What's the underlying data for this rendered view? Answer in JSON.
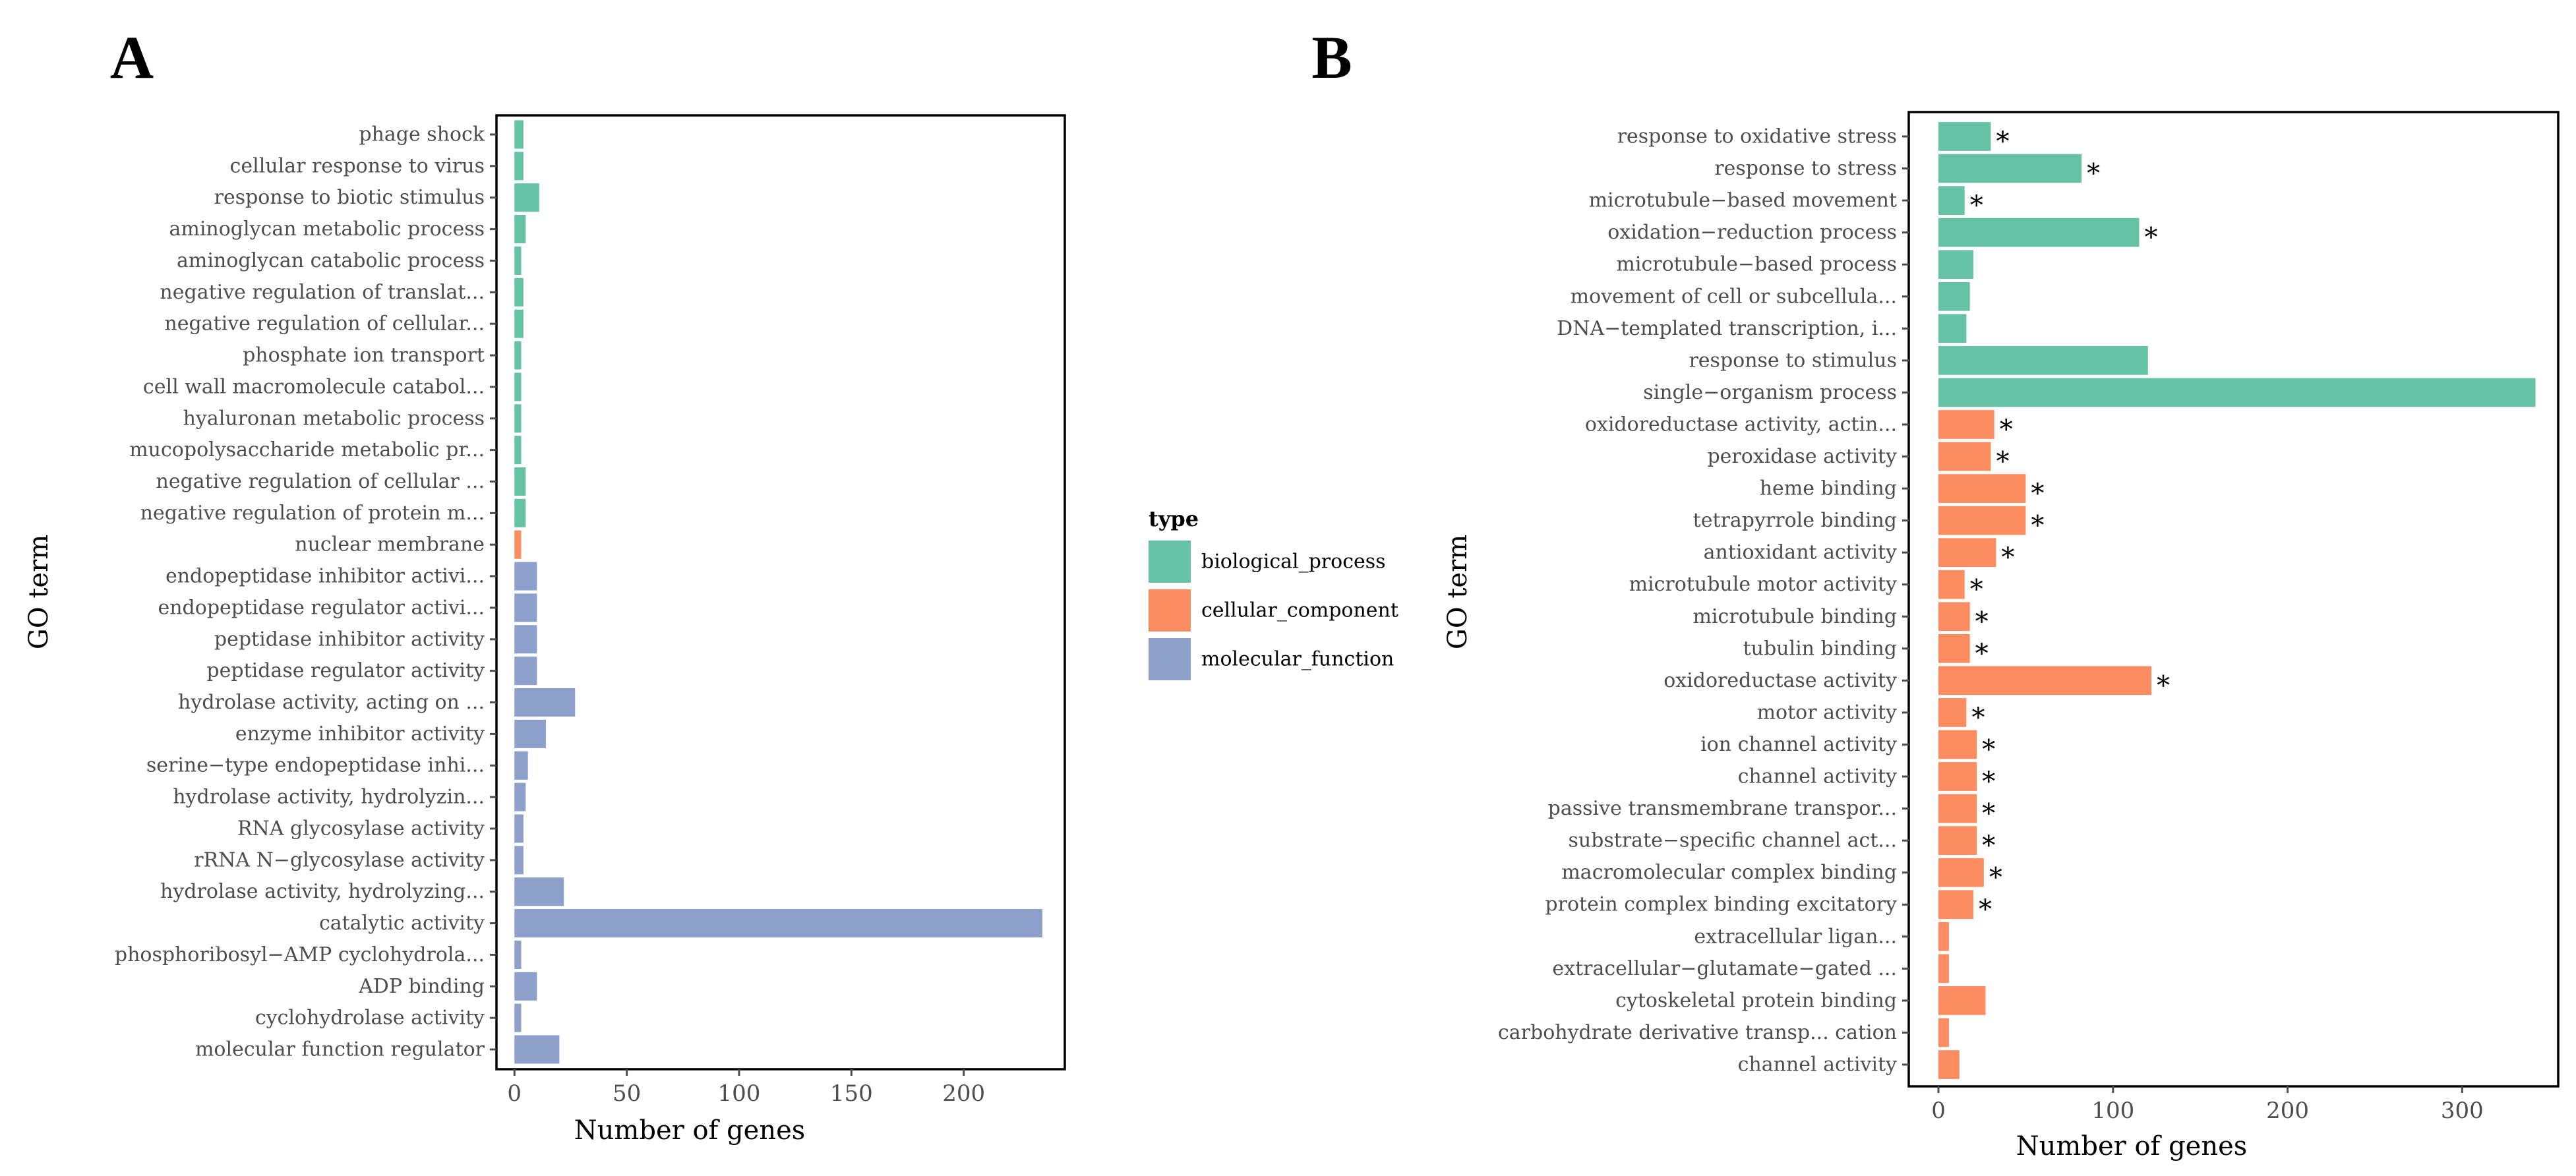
{
  "colors": {
    "biological_process": "#66C2A5",
    "cellular_component": "#FC8D62",
    "molecular_function": "#8DA0CB",
    "axis": "#000000",
    "tick_label": "#4D4D4D"
  },
  "legend": {
    "title": "type",
    "items": [
      {
        "key": "biological_process",
        "label": "biological_process"
      },
      {
        "key": "cellular_component",
        "label": "cellular_component"
      },
      {
        "key": "molecular_function",
        "label": "molecular_function"
      }
    ]
  },
  "chart_data": [
    {
      "panel": "A",
      "type": "bar",
      "orientation": "horizontal",
      "xlabel": "Number of genes",
      "ylabel": "GO term",
      "xlim": [
        -8,
        245
      ],
      "xticks": [
        0,
        50,
        100,
        150,
        200
      ],
      "legend_position": "right",
      "bars": [
        {
          "term": "phage shock",
          "value": 4,
          "type": "biological_process",
          "star": false
        },
        {
          "term": "cellular response to virus",
          "value": 4,
          "type": "biological_process",
          "star": false
        },
        {
          "term": "response to biotic stimulus",
          "value": 11,
          "type": "biological_process",
          "star": false
        },
        {
          "term": "aminoglycan metabolic process",
          "value": 5,
          "type": "biological_process",
          "star": false
        },
        {
          "term": "aminoglycan catabolic process",
          "value": 3,
          "type": "biological_process",
          "star": false
        },
        {
          "term": "negative regulation of translat...",
          "value": 4,
          "type": "biological_process",
          "star": false
        },
        {
          "term": "negative regulation of cellular...",
          "value": 4,
          "type": "biological_process",
          "star": false
        },
        {
          "term": "phosphate ion transport",
          "value": 3,
          "type": "biological_process",
          "star": false
        },
        {
          "term": "cell wall macromolecule catabol...",
          "value": 3,
          "type": "biological_process",
          "star": false
        },
        {
          "term": "hyaluronan metabolic process",
          "value": 3,
          "type": "biological_process",
          "star": false
        },
        {
          "term": "mucopolysaccharide metabolic pr...",
          "value": 3,
          "type": "biological_process",
          "star": false
        },
        {
          "term": "negative regulation of cellular ...",
          "value": 5,
          "type": "biological_process",
          "star": false
        },
        {
          "term": "negative regulation of protein m...",
          "value": 5,
          "type": "biological_process",
          "star": false
        },
        {
          "term": "nuclear membrane",
          "value": 3,
          "type": "cellular_component",
          "star": false
        },
        {
          "term": "endopeptidase inhibitor activi...",
          "value": 10,
          "type": "molecular_function",
          "star": false
        },
        {
          "term": "endopeptidase regulator activi...",
          "value": 10,
          "type": "molecular_function",
          "star": false
        },
        {
          "term": "peptidase inhibitor activity",
          "value": 10,
          "type": "molecular_function",
          "star": false
        },
        {
          "term": "peptidase regulator activity",
          "value": 10,
          "type": "molecular_function",
          "star": false
        },
        {
          "term": "hydrolase activity, acting on ...",
          "value": 27,
          "type": "molecular_function",
          "star": false
        },
        {
          "term": "enzyme inhibitor activity",
          "value": 14,
          "type": "molecular_function",
          "star": false
        },
        {
          "term": "serine−type endopeptidase inhi...",
          "value": 6,
          "type": "molecular_function",
          "star": false
        },
        {
          "term": "hydrolase activity, hydrolyzin...",
          "value": 5,
          "type": "molecular_function",
          "star": false
        },
        {
          "term": "RNA glycosylase activity",
          "value": 4,
          "type": "molecular_function",
          "star": false
        },
        {
          "term": "rRNA N−glycosylase activity",
          "value": 4,
          "type": "molecular_function",
          "star": false
        },
        {
          "term": "hydrolase activity, hydrolyzing...",
          "value": 22,
          "type": "molecular_function",
          "star": false
        },
        {
          "term": "catalytic activity",
          "value": 235,
          "type": "molecular_function",
          "star": false
        },
        {
          "term": "phosphoribosyl−AMP cyclohydrola...",
          "value": 3,
          "type": "molecular_function",
          "star": false
        },
        {
          "term": "ADP binding",
          "value": 10,
          "type": "molecular_function",
          "star": false
        },
        {
          "term": "cyclohydrolase activity",
          "value": 3,
          "type": "molecular_function",
          "star": false
        },
        {
          "term": "molecular function regulator",
          "value": 20,
          "type": "molecular_function",
          "star": false
        }
      ]
    },
    {
      "panel": "B",
      "type": "bar",
      "orientation": "horizontal",
      "xlabel": "Number of genes",
      "ylabel": "GO term",
      "xlim": [
        -17,
        355
      ],
      "xticks": [
        0,
        100,
        200,
        300
      ],
      "star_symbol": "*",
      "bars": [
        {
          "term": "response to oxidative stress",
          "value": 30,
          "type": "biological_process",
          "star": true
        },
        {
          "term": "response to stress",
          "value": 82,
          "type": "biological_process",
          "star": true
        },
        {
          "term": "microtubule−based movement",
          "value": 15,
          "type": "biological_process",
          "star": true
        },
        {
          "term": "oxidation−reduction process",
          "value": 115,
          "type": "biological_process",
          "star": true
        },
        {
          "term": "microtubule−based process",
          "value": 20,
          "type": "biological_process",
          "star": false
        },
        {
          "term": "movement of cell or subcellula...",
          "value": 18,
          "type": "biological_process",
          "star": false
        },
        {
          "term": "DNA−templated transcription, i...",
          "value": 16,
          "type": "biological_process",
          "star": false
        },
        {
          "term": "response to stimulus",
          "value": 120,
          "type": "biological_process",
          "star": false
        },
        {
          "term": "single−organism process",
          "value": 342,
          "type": "biological_process",
          "star": false
        },
        {
          "term": "oxidoreductase activity, actin...",
          "value": 32,
          "type": "cellular_component",
          "star": true
        },
        {
          "term": "peroxidase activity",
          "value": 30,
          "type": "cellular_component",
          "star": true
        },
        {
          "term": "heme binding",
          "value": 50,
          "type": "cellular_component",
          "star": true
        },
        {
          "term": "tetrapyrrole binding",
          "value": 50,
          "type": "cellular_component",
          "star": true
        },
        {
          "term": "antioxidant activity",
          "value": 33,
          "type": "cellular_component",
          "star": true
        },
        {
          "term": "microtubule motor activity",
          "value": 15,
          "type": "cellular_component",
          "star": true
        },
        {
          "term": "microtubule binding",
          "value": 18,
          "type": "cellular_component",
          "star": true
        },
        {
          "term": "tubulin binding",
          "value": 18,
          "type": "cellular_component",
          "star": true
        },
        {
          "term": "oxidoreductase activity",
          "value": 122,
          "type": "cellular_component",
          "star": true
        },
        {
          "term": "motor activity",
          "value": 16,
          "type": "cellular_component",
          "star": true
        },
        {
          "term": "ion channel activity",
          "value": 22,
          "type": "cellular_component",
          "star": true
        },
        {
          "term": "channel activity",
          "value": 22,
          "type": "cellular_component",
          "star": true
        },
        {
          "term": "passive transmembrane transpor...",
          "value": 22,
          "type": "cellular_component",
          "star": true
        },
        {
          "term": "substrate−specific channel act...",
          "value": 22,
          "type": "cellular_component",
          "star": true
        },
        {
          "term": "macromolecular complex binding",
          "value": 26,
          "type": "cellular_component",
          "star": true
        },
        {
          "term": "protein complex binding excitatory",
          "value": 20,
          "type": "cellular_component",
          "star": true
        },
        {
          "term": "extracellular ligan...",
          "value": 6,
          "type": "cellular_component",
          "star": false
        },
        {
          "term": "extracellular−glutamate−gated ...",
          "value": 6,
          "type": "cellular_component",
          "star": false
        },
        {
          "term": "cytoskeletal protein binding",
          "value": 27,
          "type": "cellular_component",
          "star": false
        },
        {
          "term": "carbohydrate derivative transp... cation",
          "value": 6,
          "type": "cellular_component",
          "star": false
        },
        {
          "term": "channel activity",
          "value": 12,
          "type": "cellular_component",
          "star": false
        }
      ]
    }
  ]
}
